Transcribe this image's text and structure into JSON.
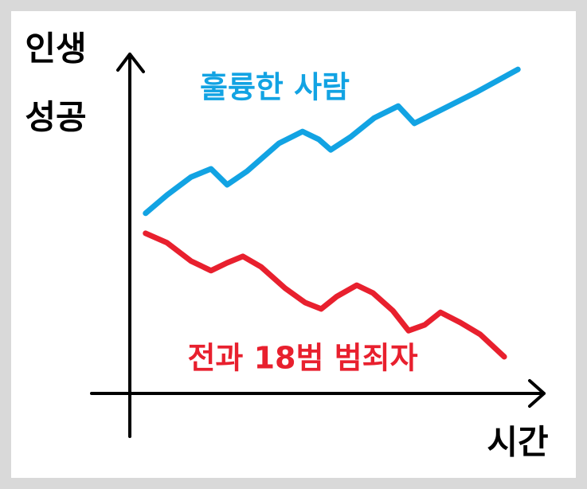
{
  "chart_data": {
    "type": "line",
    "y_label": [
      "인생",
      "성공"
    ],
    "x_label": "시간",
    "xlim": [
      0,
      100
    ],
    "ylim": [
      0,
      100
    ],
    "series": [
      {
        "name": "훌륭한 사람",
        "color": "#12a3e3",
        "x": [
          3.8,
          9.0,
          14.8,
          19.6,
          23.5,
          28.3,
          36.0,
          41.7,
          45.6,
          48.5,
          53.3,
          59.0,
          64.8,
          68.7,
          74.4,
          84.0,
          93.7
        ],
        "values": [
          53.1,
          58.5,
          63.8,
          66.2,
          61.5,
          65.5,
          73.7,
          77.2,
          74.9,
          71.8,
          75.6,
          81.2,
          84.7,
          79.6,
          83.1,
          89.0,
          95.5
        ]
      },
      {
        "name": "전과 18범 범죄자",
        "color": "#e8202e",
        "x": [
          3.8,
          9.0,
          14.8,
          19.6,
          23.5,
          27.3,
          31.7,
          37.5,
          42.3,
          46.2,
          50.0,
          54.8,
          58.7,
          63.5,
          67.3,
          71.2,
          75.0,
          79.8,
          84.6,
          90.4
        ],
        "values": [
          47.2,
          44.4,
          39.0,
          36.2,
          38.5,
          40.4,
          37.3,
          31.0,
          26.8,
          24.9,
          28.6,
          31.9,
          29.6,
          24.4,
          18.5,
          20.2,
          23.9,
          20.9,
          17.4,
          10.8
        ]
      }
    ]
  }
}
